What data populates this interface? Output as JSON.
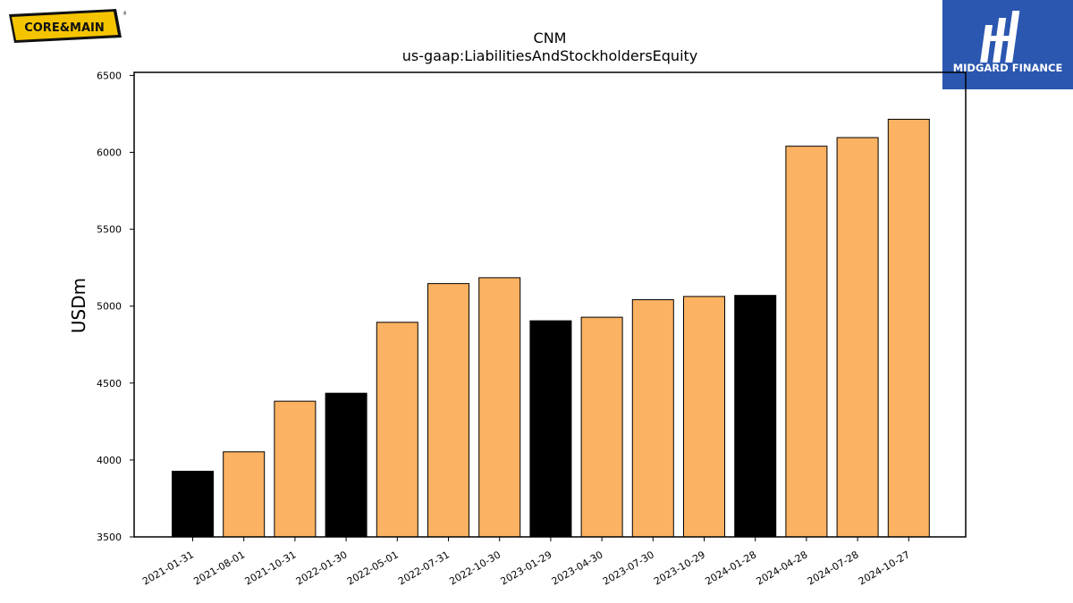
{
  "logos": {
    "left": {
      "text": "CORE&MAIN",
      "colors": {
        "yellow": "#f5c400",
        "black": "#111111"
      }
    },
    "right": {
      "text": "MIDGARD FINANCE",
      "colors": {
        "bg": "#2b57b0",
        "fg": "#ffffff"
      }
    }
  },
  "chart_data": {
    "type": "bar",
    "title": "CNM",
    "subtitle": "us-gaap:LiabilitiesAndStockholdersEquity",
    "xlabel": "",
    "ylabel": "USDm",
    "ylim": [
      3500,
      6520
    ],
    "yticks": [
      3500,
      4000,
      4500,
      5000,
      5500,
      6000,
      6500
    ],
    "grid": false,
    "categories": [
      "2021-01-31",
      "2021-08-01",
      "2021-10-31",
      "2022-01-30",
      "2022-05-01",
      "2022-07-31",
      "2022-10-30",
      "2023-01-29",
      "2023-04-30",
      "2023-07-30",
      "2023-10-29",
      "2024-01-28",
      "2024-04-28",
      "2024-07-28",
      "2024-10-27"
    ],
    "values": [
      3927,
      4053,
      4382,
      4434,
      4895,
      5147,
      5185,
      4905,
      4928,
      5042,
      5063,
      5070,
      6040,
      6096,
      6215
    ],
    "fiscal_year_end": [
      true,
      false,
      false,
      true,
      false,
      false,
      false,
      true,
      false,
      false,
      false,
      true,
      false,
      false,
      false
    ],
    "colors": {
      "annual": "#000000",
      "quarterly": "#fbb262",
      "edge": "#000000"
    }
  }
}
